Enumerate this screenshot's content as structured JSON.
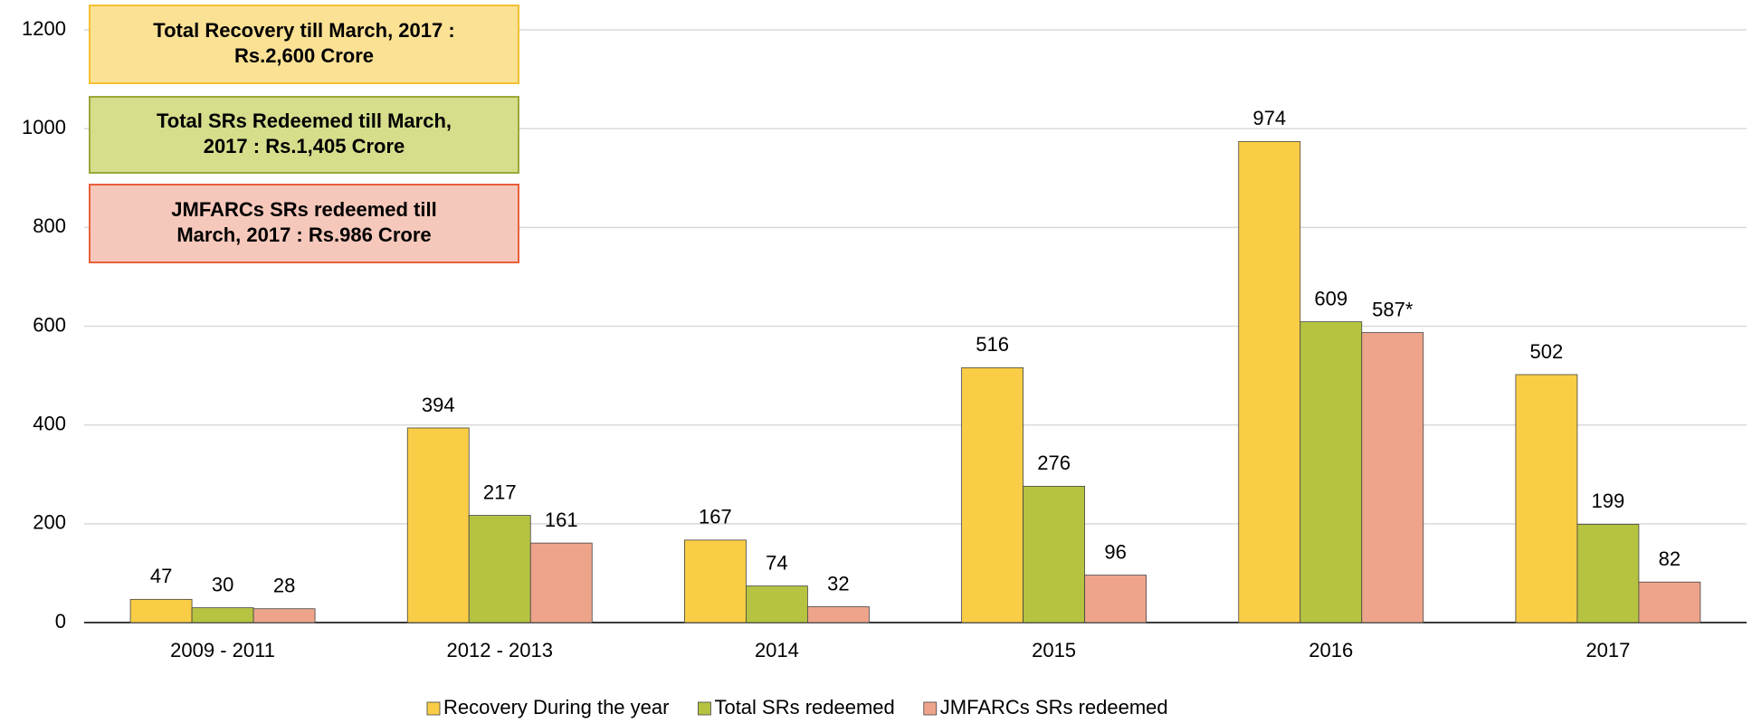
{
  "chart_data": {
    "type": "bar",
    "categories": [
      "2009 - 2011",
      "2012 - 2013",
      "2014",
      "2015",
      "2016",
      "2017"
    ],
    "series": [
      {
        "name": "Recovery During the year",
        "color": "#f9cd45",
        "values": [
          47,
          394,
          167,
          516,
          974,
          502
        ]
      },
      {
        "name": "Total SRs redeemed",
        "color": "#b5c341",
        "values": [
          30,
          217,
          74,
          276,
          609,
          199
        ]
      },
      {
        "name": "JMFARCs SRs redeemed",
        "color": "#eda48b",
        "values": [
          28,
          161,
          32,
          96,
          587,
          82
        ],
        "value_labels": [
          "28",
          "161",
          "32",
          "96",
          "587*",
          "82"
        ]
      }
    ],
    "ylim": [
      0,
      1200
    ],
    "yticks": [
      0,
      200,
      400,
      600,
      800,
      1000,
      1200
    ],
    "grid": true,
    "legend": "bottom",
    "annotations": [
      {
        "lines": [
          "Total Recovery till March, 2017 :",
          "Rs.2,600 Crore"
        ],
        "fill": "#fbe194",
        "stroke": "#f3c030"
      },
      {
        "lines": [
          "Total SRs Redeemed till March,",
          "2017 : Rs.1,405 Crore"
        ],
        "fill": "#d6dd8b",
        "stroke": "#9aa83a"
      },
      {
        "lines": [
          "JMFARCs SRs redeemed till",
          "March, 2017 : Rs.986 Crore"
        ],
        "fill": "#f6c8bb",
        "stroke": "#e8603a"
      }
    ]
  }
}
